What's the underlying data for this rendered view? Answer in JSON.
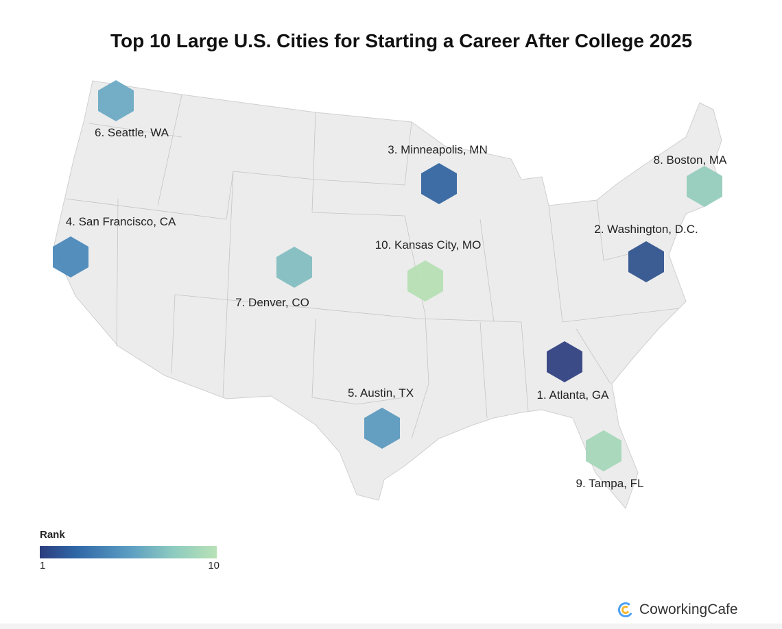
{
  "title": "Top 10 Large U.S. Cities for Starting a Career After College 2025",
  "legend": {
    "title": "Rank",
    "min_label": "1",
    "max_label": "10",
    "colors": [
      "#2b3d7e",
      "#2f66a6",
      "#5a9cc2",
      "#8ccac0",
      "#b8e2b6"
    ]
  },
  "map_fill": "#ececec",
  "cities": [
    {
      "rank": 1,
      "label": "1. Atlanta, GA",
      "color": "#2b3d7e"
    },
    {
      "rank": 2,
      "label": "2. Washington, D.C.",
      "color": "#2d4f8c"
    },
    {
      "rank": 3,
      "label": "3. Minneapolis, MN",
      "color": "#2f62a0"
    },
    {
      "rank": 4,
      "label": "4. San Francisco, CA",
      "color": "#4586b8"
    },
    {
      "rank": 5,
      "label": "5. Austin, TX",
      "color": "#5897bd"
    },
    {
      "rank": 6,
      "label": "6. Seattle, WA",
      "color": "#69a8c2"
    },
    {
      "rank": 7,
      "label": "7. Denver, CO",
      "color": "#80bcbf"
    },
    {
      "rank": 8,
      "label": "8. Boston, MA",
      "color": "#93cbbb"
    },
    {
      "rank": 9,
      "label": "9. Tampa, FL",
      "color": "#a4d6b8"
    },
    {
      "rank": 10,
      "label": "10. Kansas City, MO",
      "color": "#b5deb3"
    }
  ],
  "brand": "CoworkingCafe"
}
